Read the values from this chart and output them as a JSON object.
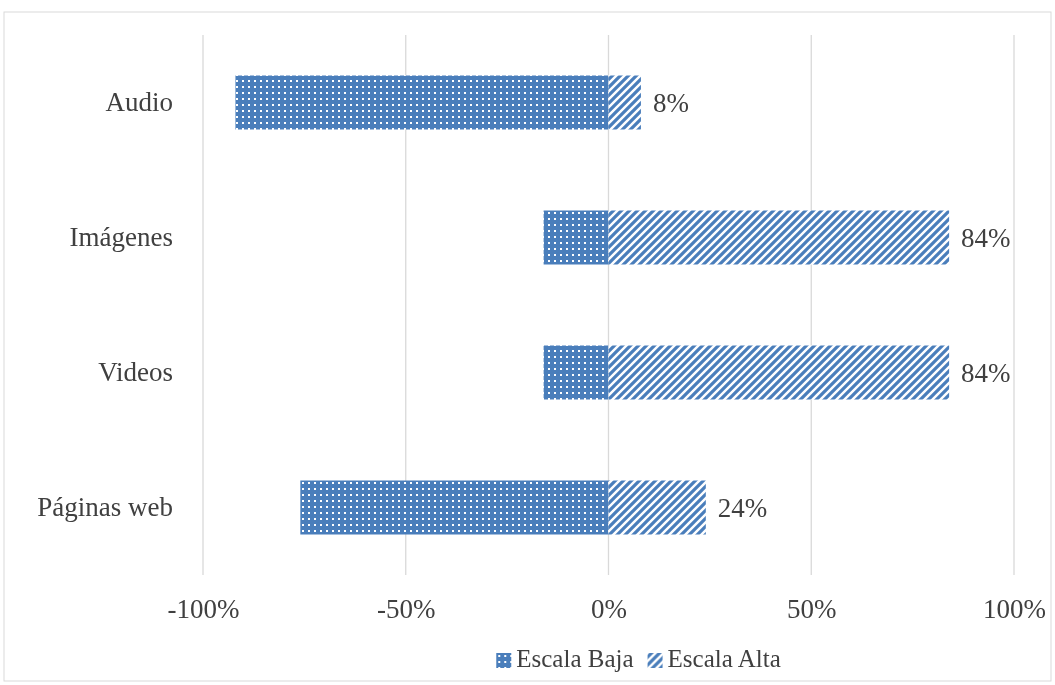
{
  "chart_data": {
    "type": "bar",
    "orientation": "horizontal",
    "stacked": true,
    "categories": [
      "Audio",
      "Imágenes",
      "Videos",
      "Páginas web"
    ],
    "series": [
      {
        "name": "Escala Baja",
        "color": "#4a7ebb",
        "values": [
          -92,
          -16,
          -16,
          -76
        ]
      },
      {
        "name": "Escala Alta",
        "color": "#4a7ebb",
        "values": [
          8,
          84,
          84,
          24
        ],
        "value_labels": [
          "8%",
          "84%",
          "84%",
          "24%"
        ]
      }
    ],
    "xlim": [
      -100,
      100
    ],
    "xticks": [
      {
        "value": -100,
        "label": "-100%"
      },
      {
        "value": -50,
        "label": "-50%"
      },
      {
        "value": 0,
        "label": "0%"
      },
      {
        "value": 50,
        "label": "50%"
      },
      {
        "value": 100,
        "label": "100%"
      }
    ],
    "grid": "x",
    "legend": "bottom"
  }
}
